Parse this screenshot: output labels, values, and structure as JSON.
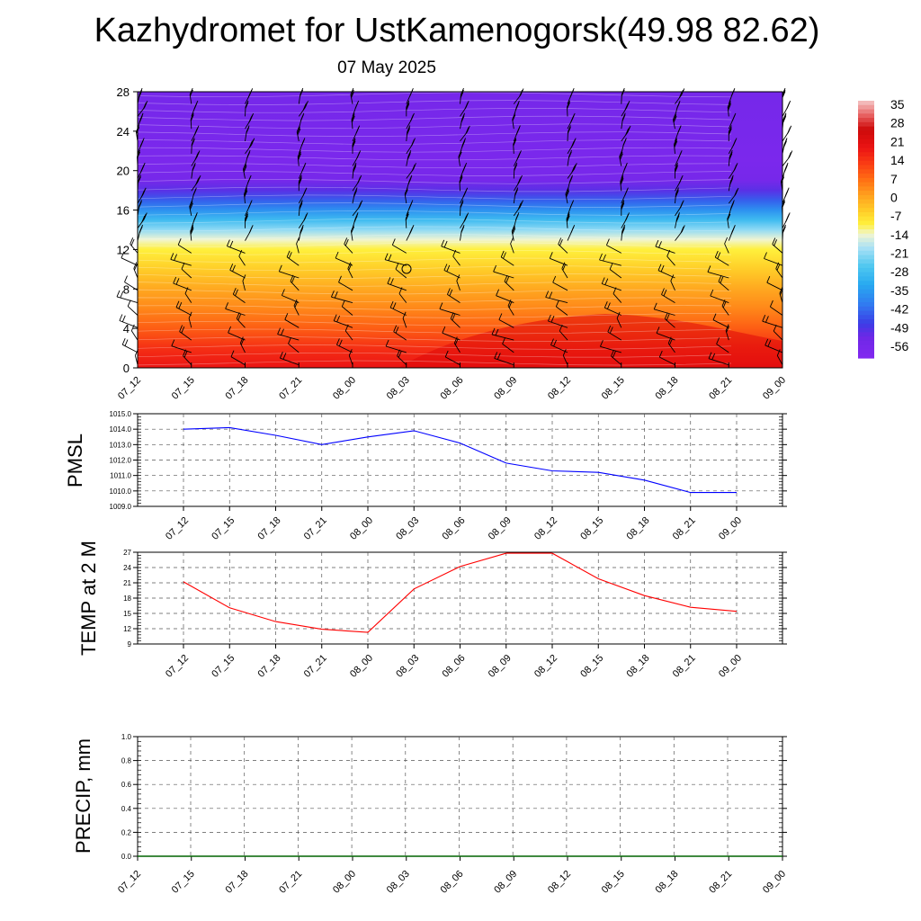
{
  "title": "Kazhydromet for UstKamenogorsk(49.98 82.62)",
  "subtitle": "07 May 2025",
  "chart_data": [
    {
      "type": "heatmap",
      "name": "vertical-cross-section",
      "x_categories": [
        "07_12",
        "07_15",
        "07_18",
        "07_21",
        "08_00",
        "08_03",
        "08_06",
        "08_09",
        "08_12",
        "08_15",
        "08_18",
        "08_21",
        "09_00"
      ],
      "y_ticks": [
        0,
        4,
        8,
        12,
        16,
        20,
        24,
        28
      ],
      "ylim": [
        0,
        28
      ],
      "colorbar": {
        "labels": [
          "35",
          "28",
          "21",
          "14",
          "7",
          "0",
          "-7",
          "-14",
          "-21",
          "-28",
          "-35",
          "-42",
          "-49",
          "-56"
        ],
        "range": [
          -60,
          38
        ]
      },
      "temperature_profile": [
        {
          "height": 0,
          "value": 20
        },
        {
          "height": 2,
          "value": 16
        },
        {
          "height": 4,
          "value": 10
        },
        {
          "height": 6,
          "value": 5
        },
        {
          "height": 8,
          "value": 1
        },
        {
          "height": 10,
          "value": -4
        },
        {
          "height": 12,
          "value": -9
        },
        {
          "height": 13,
          "value": -13
        },
        {
          "height": 14,
          "value": -20
        },
        {
          "height": 15,
          "value": -28
        },
        {
          "height": 16,
          "value": -36
        },
        {
          "height": 17,
          "value": -43
        },
        {
          "height": 18,
          "value": -50
        },
        {
          "height": 19,
          "value": -55
        },
        {
          "height": 21,
          "value": -57
        },
        {
          "height": 24,
          "value": -56
        },
        {
          "height": 28,
          "value": -55
        }
      ]
    },
    {
      "type": "line",
      "name": "PMSL",
      "ylabel": "PMSL",
      "x": [
        "07_12",
        "07_15",
        "07_18",
        "07_21",
        "08_00",
        "08_03",
        "08_06",
        "08_09",
        "08_12",
        "08_15",
        "08_18",
        "08_21",
        "09_00"
      ],
      "values": [
        1014.0,
        1014.1,
        1013.6,
        1013.0,
        1013.5,
        1013.9,
        1013.1,
        1011.8,
        1011.3,
        1011.2,
        1010.7,
        1009.9,
        1009.9
      ],
      "ylim": [
        1009.0,
        1015.0
      ],
      "y_ticks": [
        "1015.0",
        "1014.0",
        "1013.0",
        "1012.0",
        "1011.0",
        "1010.0",
        "1009.0"
      ],
      "color": "#0000ff",
      "grid": true
    },
    {
      "type": "line",
      "name": "TEMP at 2 M",
      "ylabel": "TEMP at 2 M",
      "x": [
        "07_12",
        "07_15",
        "07_18",
        "07_21",
        "08_00",
        "08_03",
        "08_06",
        "08_09",
        "08_12",
        "08_15",
        "08_18",
        "08_21",
        "09_00"
      ],
      "values": [
        21.2,
        16.1,
        13.4,
        11.9,
        11.3,
        19.8,
        24.2,
        26.8,
        26.8,
        21.8,
        18.5,
        16.2,
        15.4
      ],
      "ylim": [
        9,
        27
      ],
      "y_ticks": [
        "27",
        "24",
        "21",
        "18",
        "15",
        "12",
        "9"
      ],
      "color": "#ff0000",
      "grid": true
    },
    {
      "type": "line",
      "name": "PRECIP, mm",
      "ylabel": "PRECIP, mm",
      "x": [
        "07_12",
        "07_15",
        "07_18",
        "07_21",
        "08_00",
        "08_03",
        "08_06",
        "08_09",
        "08_12",
        "08_15",
        "08_18",
        "08_21",
        "09_00"
      ],
      "values": [
        0,
        0,
        0,
        0,
        0,
        0,
        0,
        0,
        0,
        0,
        0,
        0,
        0
      ],
      "ylim": [
        0.0,
        1.0
      ],
      "y_ticks": [
        "1.0",
        "0.8",
        "0.6",
        "0.4",
        "0.2",
        "0.0"
      ],
      "color": "#006400",
      "grid": true
    }
  ]
}
